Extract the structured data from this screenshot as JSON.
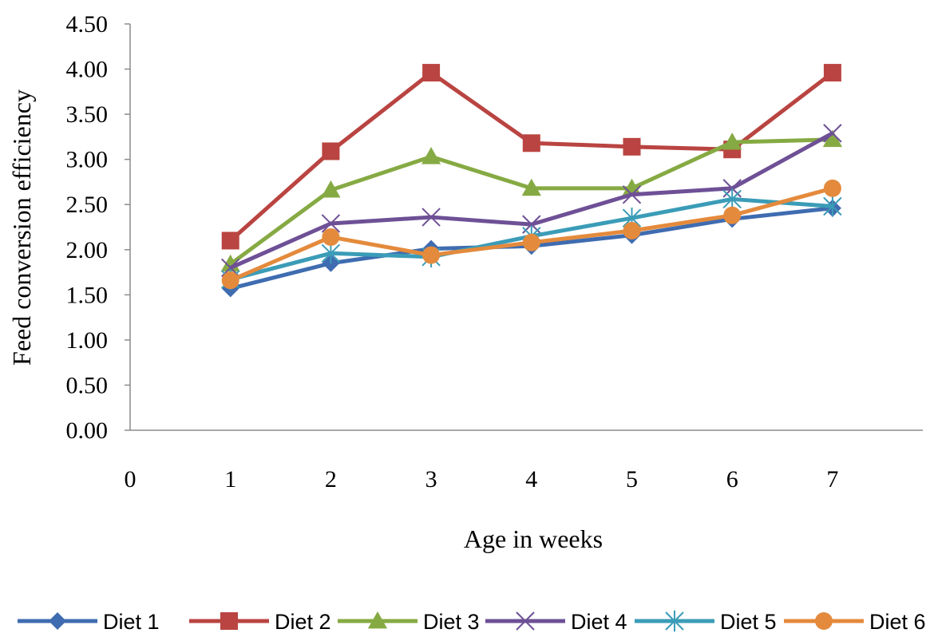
{
  "chart_data": {
    "type": "line",
    "title": "",
    "xlabel": "Age in weeks",
    "ylabel": "Feed conversion efficiency",
    "x_ticks": [
      "0",
      "1",
      "2",
      "3",
      "4",
      "5",
      "6",
      "7"
    ],
    "y_ticks": [
      "0.00",
      "0.50",
      "1.00",
      "1.50",
      "2.00",
      "2.50",
      "3.00",
      "3.50",
      "4.00",
      "4.50"
    ],
    "xlim": [
      0,
      7.9
    ],
    "ylim": [
      0,
      4.5
    ],
    "grid": false,
    "legend_position": "bottom",
    "x": [
      1,
      2,
      3,
      4,
      5,
      6,
      7
    ],
    "series": [
      {
        "name": "Diet 1",
        "color": "#3f6cb0",
        "marker": "diamond",
        "values": [
          1.57,
          1.85,
          2.01,
          2.04,
          2.16,
          2.34,
          2.46
        ]
      },
      {
        "name": "Diet 2",
        "color": "#b94441",
        "marker": "square",
        "values": [
          2.1,
          3.09,
          3.96,
          3.18,
          3.14,
          3.11,
          3.96
        ]
      },
      {
        "name": "Diet 3",
        "color": "#86aa43",
        "marker": "triangle",
        "values": [
          1.84,
          2.66,
          3.03,
          2.68,
          2.68,
          3.19,
          3.22
        ]
      },
      {
        "name": "Diet 4",
        "color": "#6e5096",
        "marker": "x",
        "values": [
          1.8,
          2.29,
          2.36,
          2.28,
          2.61,
          2.68,
          3.29
        ]
      },
      {
        "name": "Diet 5",
        "color": "#3b9cb7",
        "marker": "asterisk",
        "values": [
          1.67,
          1.96,
          1.92,
          2.15,
          2.35,
          2.56,
          2.48
        ]
      },
      {
        "name": "Diet 6",
        "color": "#e48a3c",
        "marker": "circle",
        "values": [
          1.66,
          2.14,
          1.94,
          2.08,
          2.21,
          2.38,
          2.68
        ]
      }
    ]
  }
}
